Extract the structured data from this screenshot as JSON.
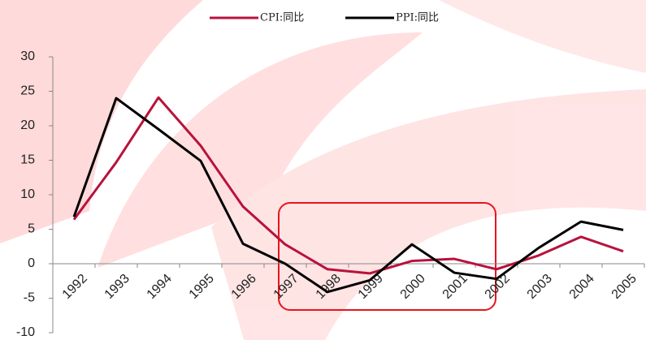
{
  "chart_data": {
    "type": "line",
    "categories": [
      "1992",
      "1993",
      "1994",
      "1995",
      "1996",
      "1997",
      "1998",
      "1999",
      "2000",
      "2001",
      "2002",
      "2003",
      "2004",
      "2005"
    ],
    "series": [
      {
        "name": "CPI:同比",
        "color": "#b8123c",
        "values": [
          6.4,
          14.7,
          24.1,
          17.1,
          8.3,
          2.8,
          -0.8,
          -1.4,
          0.4,
          0.7,
          -0.8,
          1.2,
          3.9,
          1.8
        ]
      },
      {
        "name": "PPI:同比",
        "color": "#000000",
        "values": [
          6.8,
          24.0,
          19.5,
          14.9,
          2.9,
          0.0,
          -4.1,
          -2.4,
          2.8,
          -1.3,
          -2.2,
          2.3,
          6.1,
          4.9
        ]
      }
    ],
    "ylim": [
      -10,
      30
    ],
    "yticks": [
      -10,
      -5,
      0,
      5,
      10,
      15,
      20,
      25,
      30
    ],
    "legend": "top"
  }
}
